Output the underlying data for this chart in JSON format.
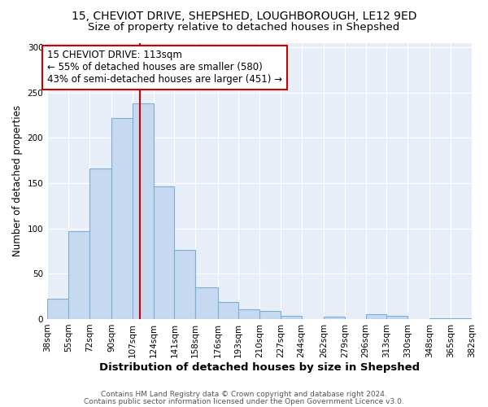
{
  "title1": "15, CHEVIOT DRIVE, SHEPSHED, LOUGHBOROUGH, LE12 9ED",
  "title2": "Size of property relative to detached houses in Shepshed",
  "xlabel": "Distribution of detached houses by size in Shepshed",
  "ylabel": "Number of detached properties",
  "footnote1": "Contains HM Land Registry data © Crown copyright and database right 2024.",
  "footnote2": "Contains public sector information licensed under the Open Government Licence v3.0.",
  "bin_labels": [
    "38sqm",
    "55sqm",
    "72sqm",
    "90sqm",
    "107sqm",
    "124sqm",
    "141sqm",
    "158sqm",
    "176sqm",
    "193sqm",
    "210sqm",
    "227sqm",
    "244sqm",
    "262sqm",
    "279sqm",
    "296sqm",
    "313sqm",
    "330sqm",
    "348sqm",
    "365sqm",
    "382sqm"
  ],
  "bin_edges": [
    38,
    55,
    72,
    90,
    107,
    124,
    141,
    158,
    176,
    193,
    210,
    227,
    244,
    262,
    279,
    296,
    313,
    330,
    348,
    365,
    382
  ],
  "bar_heights": [
    22,
    97,
    166,
    222,
    238,
    146,
    76,
    35,
    19,
    11,
    9,
    4,
    0,
    3,
    0,
    5,
    4,
    0,
    1,
    1
  ],
  "bar_color": "#c6d9f0",
  "bar_edge_color": "#7bafd4",
  "marker_value": 113,
  "marker_color": "#cc0000",
  "annotation_title": "15 CHEVIOT DRIVE: 113sqm",
  "annotation_line1": "← 55% of detached houses are smaller (580)",
  "annotation_line2": "43% of semi-detached houses are larger (451) →",
  "annotation_box_color": "#ffffff",
  "annotation_box_edge_color": "#cc0000",
  "ylim": [
    0,
    305
  ],
  "yticks": [
    0,
    50,
    100,
    150,
    200,
    250,
    300
  ],
  "figure_bg": "#ffffff",
  "plot_bg": "#e8eef8",
  "grid_color": "#ffffff",
  "title1_fontsize": 10,
  "title2_fontsize": 9.5,
  "xlabel_fontsize": 9.5,
  "ylabel_fontsize": 8.5,
  "tick_fontsize": 7.5,
  "annotation_fontsize": 8.5,
  "footnote_fontsize": 6.5
}
